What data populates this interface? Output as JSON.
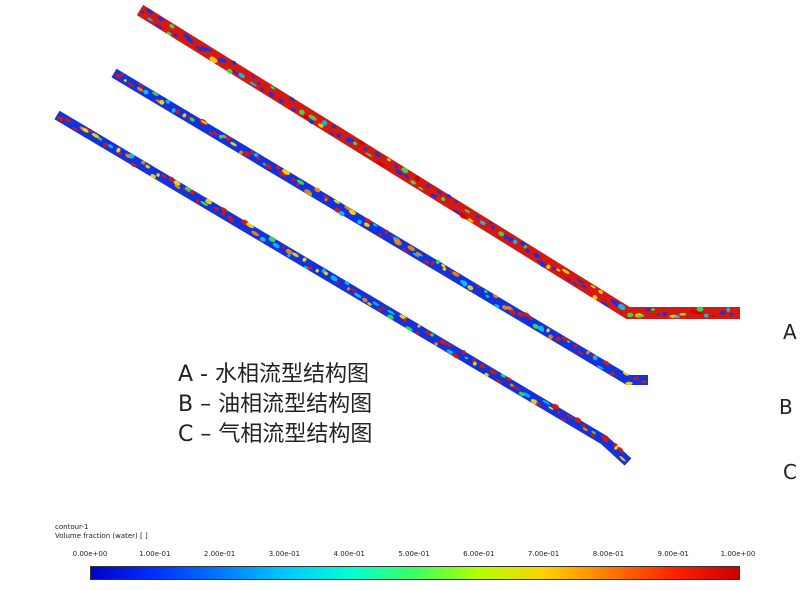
{
  "pipes": [
    {
      "id": "A",
      "label": "A",
      "base_color": "#d21a12",
      "blob_colors": [
        "#1432e6",
        "#00c8ff",
        "#32e650",
        "#ffe000",
        "#c80000"
      ]
    },
    {
      "id": "B",
      "label": "B",
      "base_color": "#1432d8",
      "blob_colors": [
        "#d21a12",
        "#ff8a00",
        "#ffe000",
        "#32e650",
        "#00c8ff"
      ]
    },
    {
      "id": "C",
      "label": "C",
      "base_color": "#1432d8",
      "blob_colors": [
        "#d21a12",
        "#ff8a00",
        "#ffe000",
        "#32e650",
        "#00c8ff"
      ]
    }
  ],
  "legend": [
    "A - 水相流型结构图",
    "B – 油相流型结构图",
    "C – 气相流型结构图"
  ],
  "colorbar": {
    "contour_name": "contour-1",
    "variable": "Volume fraction (water) [ ]",
    "ticks": [
      "0.00e+00",
      "1.00e-01",
      "2.00e-01",
      "3.00e-01",
      "4.00e-01",
      "5.00e-01",
      "6.00e-01",
      "7.00e-01",
      "8.00e-01",
      "9.00e-01",
      "1.00e+00"
    ]
  }
}
